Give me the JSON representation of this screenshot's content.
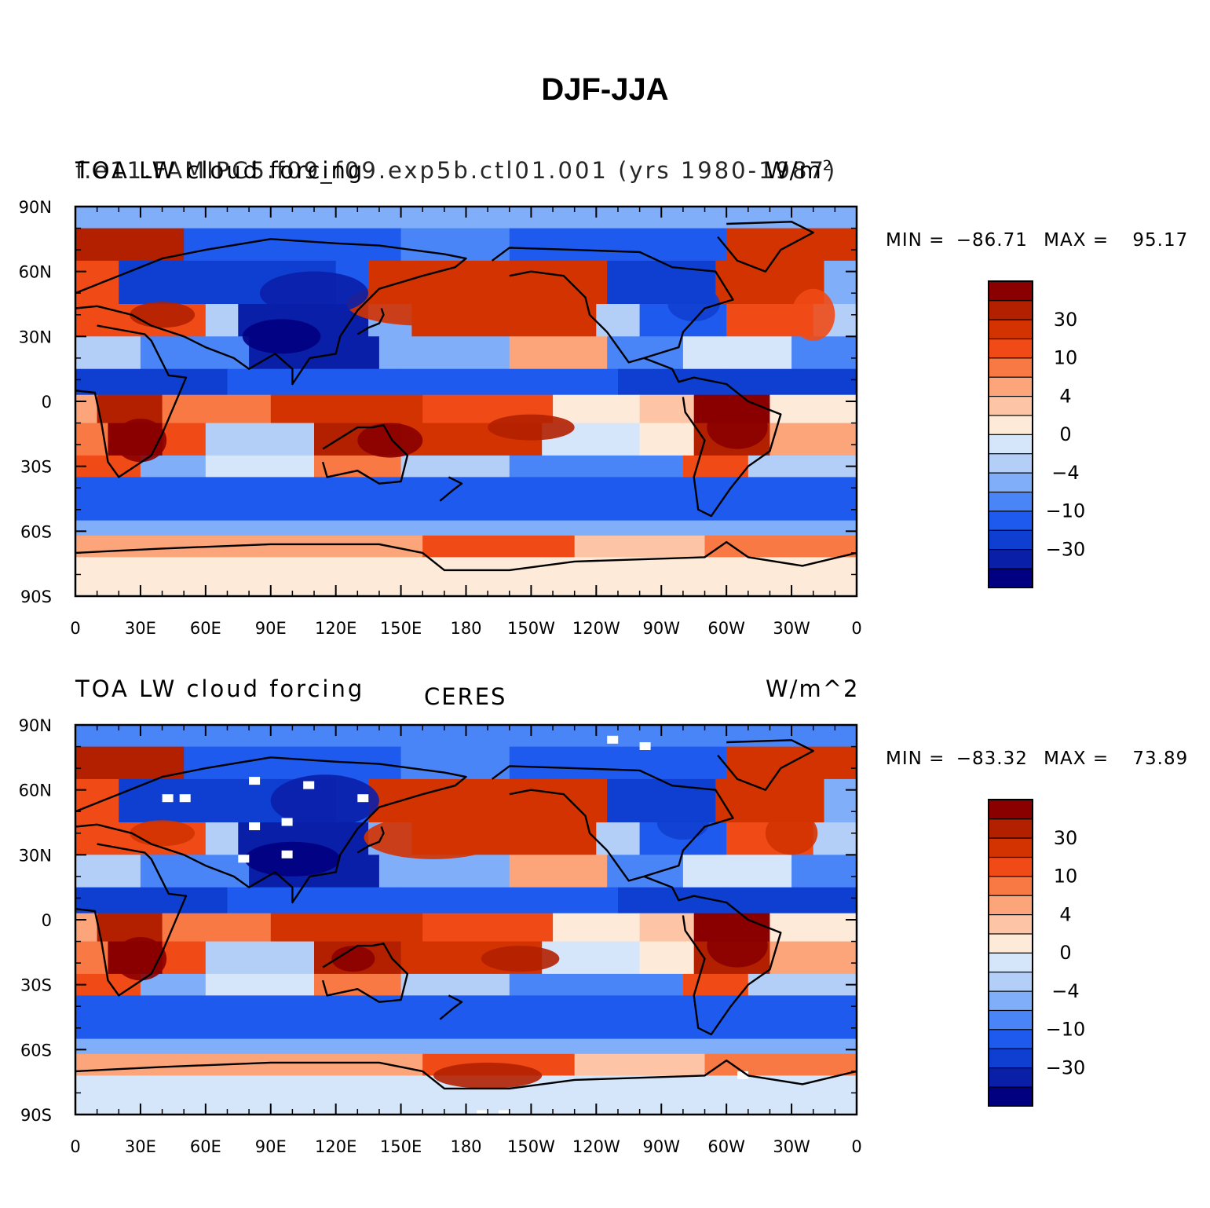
{
  "title": "DJF-JJA",
  "panels": [
    {
      "id": "model",
      "left_string": "TOA LW cloud forcing",
      "left_string_overlay": "f.e11.FAMIPC5.f09_f09.exp5b.ctl01.001 (yrs 1980-1987)",
      "center_string": "",
      "right_string": "W/m",
      "right_superscript": "2",
      "min_label": "MIN =",
      "min_value": "−86.71",
      "max_label": "MAX =",
      "max_value": "95.17"
    },
    {
      "id": "obs",
      "left_string": "TOA LW cloud forcing",
      "left_string_overlay": "",
      "center_string": "CERES",
      "right_string": "W/m^2",
      "right_superscript": "",
      "min_label": "MIN =",
      "min_value": "−83.32",
      "max_label": "MAX =",
      "max_value": "73.89"
    }
  ],
  "map": {
    "projection": "cylindrical equidistant",
    "lon_range": [
      0,
      360
    ],
    "lat_range": [
      -90,
      90
    ],
    "lat_tick_labels": [
      "90N",
      "60N",
      "30N",
      "0",
      "30S",
      "60S",
      "90S"
    ],
    "lon_tick_labels": [
      "0",
      "30E",
      "60E",
      "90E",
      "120E",
      "150E",
      "180",
      "150W",
      "120W",
      "90W",
      "60W",
      "30W",
      "0"
    ]
  },
  "colorbar": {
    "colors": [
      "#000080",
      "#0a1fa8",
      "#0f3fd0",
      "#1f5aef",
      "#4a85f7",
      "#80aef8",
      "#b3cff8",
      "#d5e6fb",
      "#feead8",
      "#fdc5a6",
      "#fca57a",
      "#f87943",
      "#f04a16",
      "#d23300",
      "#b22000",
      "#8a0000"
    ],
    "tick_labels": [
      "30",
      "10",
      "4",
      "0",
      "−4",
      "−10",
      "−30"
    ]
  }
}
